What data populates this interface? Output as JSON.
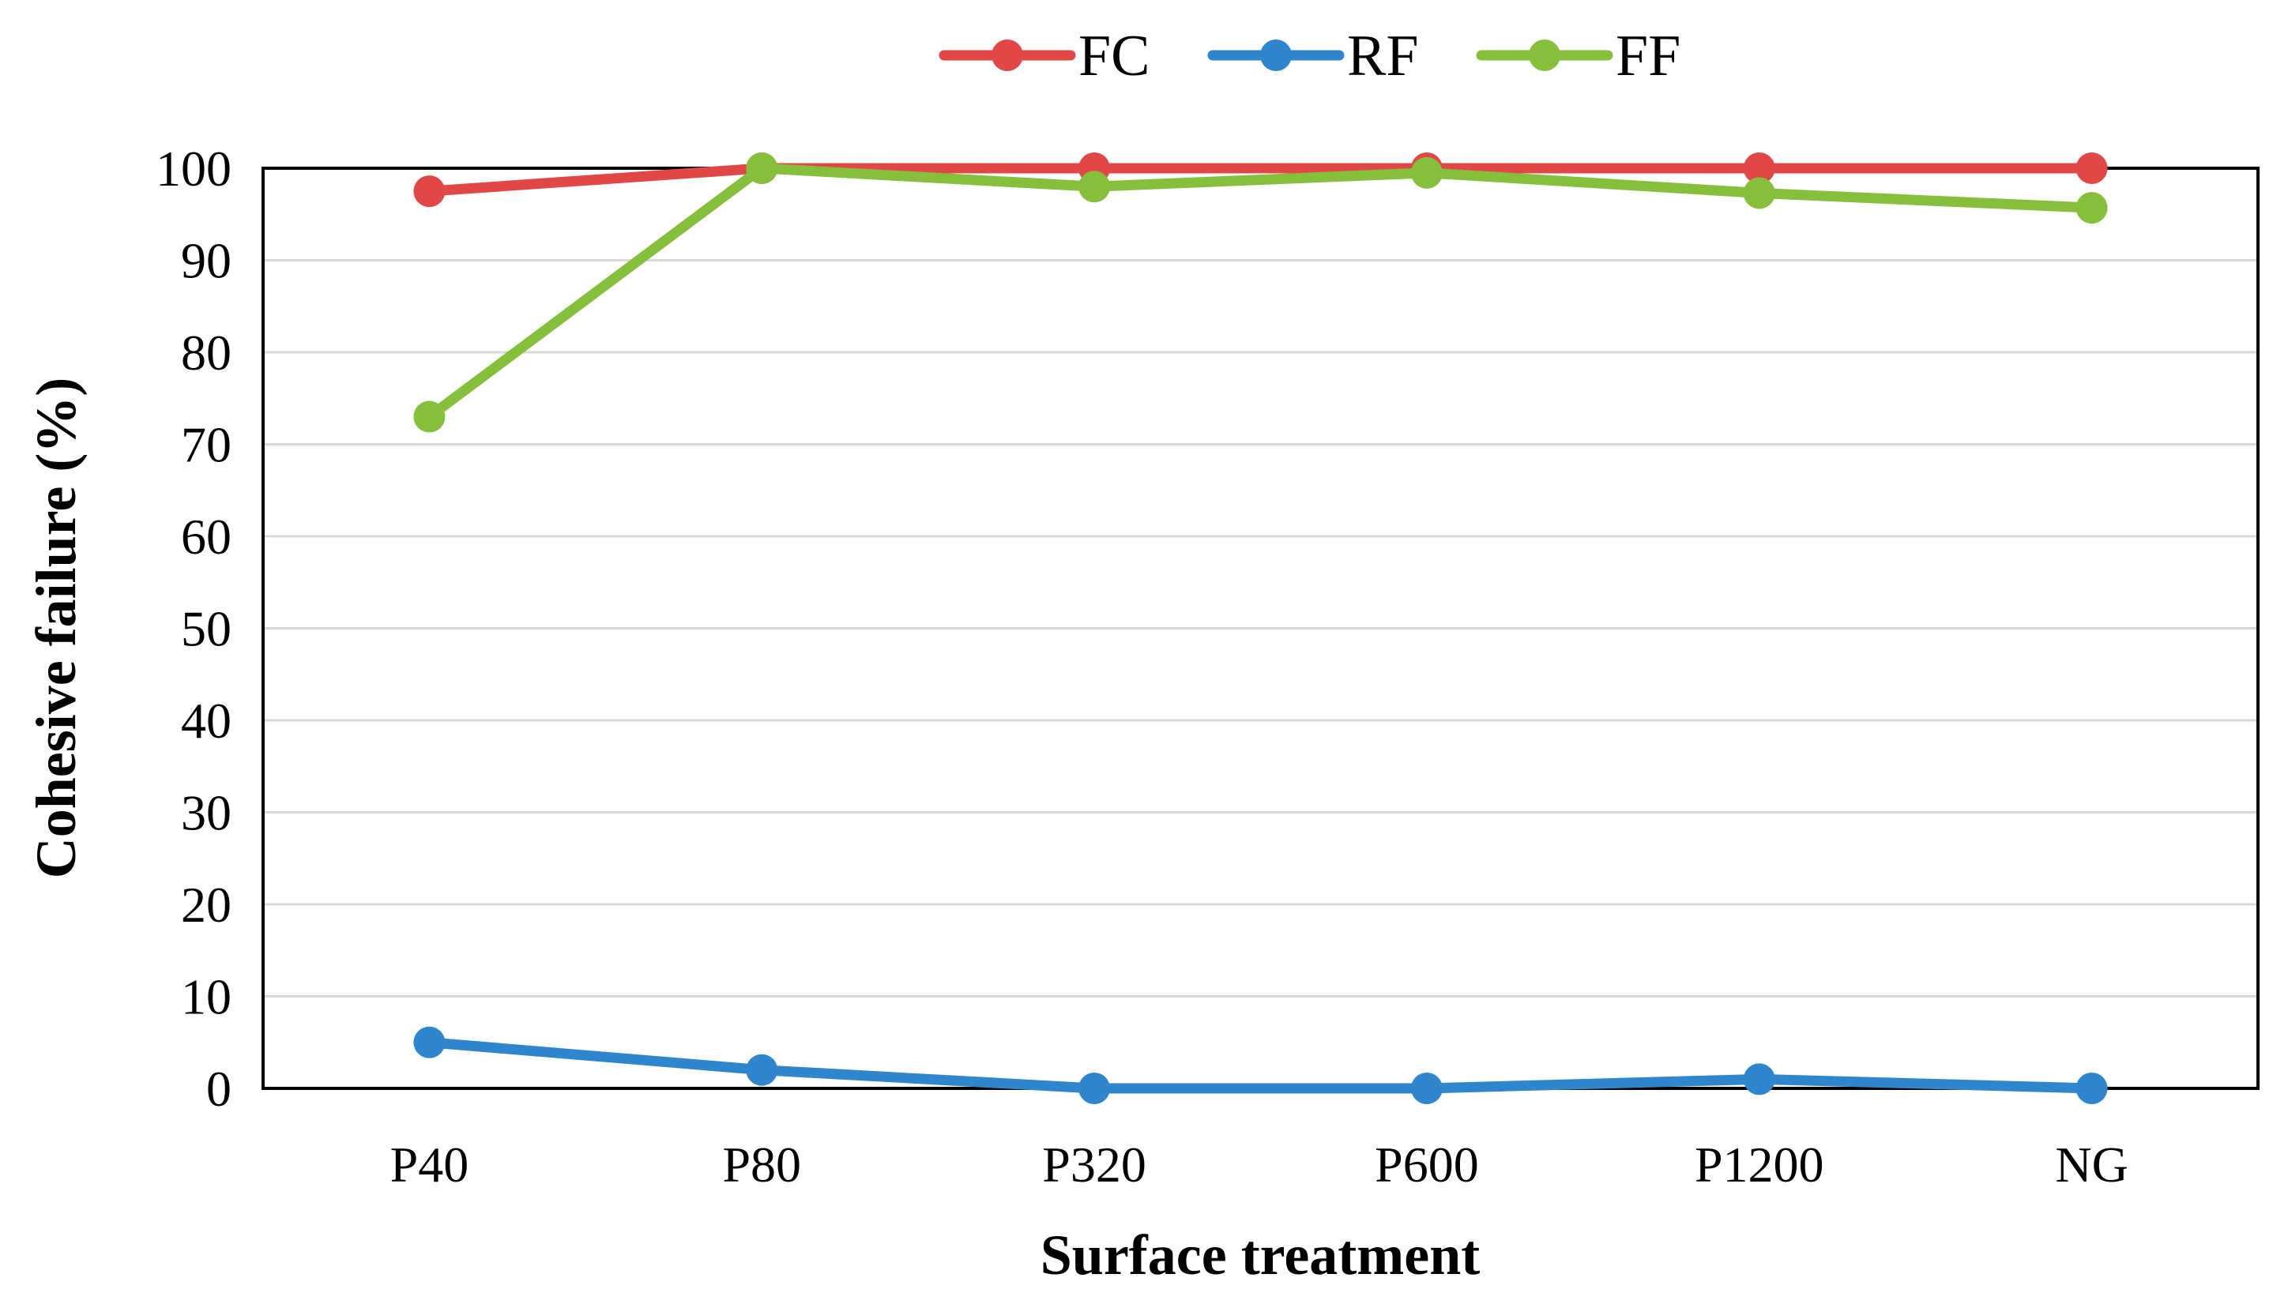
{
  "chart_data": {
    "type": "line",
    "title": "",
    "xlabel": "Surface treatment",
    "ylabel": "Cohesive failure (%)",
    "categories": [
      "P40",
      "P80",
      "P320",
      "P600",
      "P1200",
      "NG"
    ],
    "ylim": [
      0,
      100
    ],
    "yticks": [
      0,
      10,
      20,
      30,
      40,
      50,
      60,
      70,
      80,
      90,
      100
    ],
    "grid": true,
    "legend_position": "top",
    "series": [
      {
        "name": "FC",
        "color": "#e04848",
        "values": [
          97.5,
          100,
          100,
          100,
          100,
          100
        ]
      },
      {
        "name": "RF",
        "color": "#2f86cc",
        "values": [
          5,
          2,
          0,
          0,
          1,
          0
        ]
      },
      {
        "name": "FF",
        "color": "#86bf3c",
        "values": [
          73,
          100,
          98,
          99.5,
          97.3,
          95.7
        ]
      }
    ]
  }
}
